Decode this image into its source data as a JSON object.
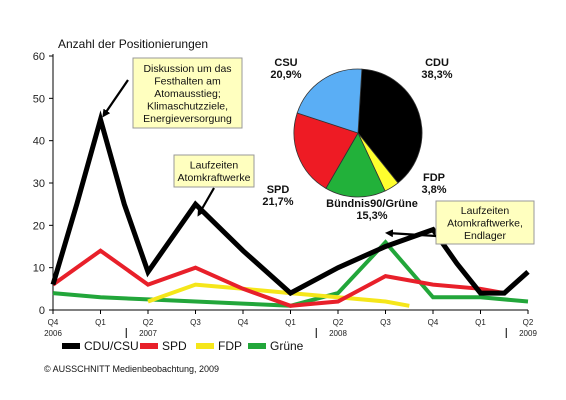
{
  "chart_data": {
    "type": "line",
    "ylabel": "Anzahl der Positionierungen",
    "ylim": [
      0,
      60
    ],
    "yticks": [
      "0",
      "10",
      "20",
      "30",
      "40",
      "50",
      "60"
    ],
    "categories": [
      {
        "q": "Q4",
        "year": "2006"
      },
      {
        "q": "Q1",
        "year": ""
      },
      {
        "q": "Q2",
        "year": "2007"
      },
      {
        "q": "Q3",
        "year": ""
      },
      {
        "q": "Q4",
        "year": ""
      },
      {
        "q": "Q1",
        "year": ""
      },
      {
        "q": "Q2",
        "year": "2008"
      },
      {
        "q": "Q3",
        "year": ""
      },
      {
        "q": "Q4",
        "year": ""
      },
      {
        "q": "Q1",
        "year": ""
      },
      {
        "q": "Q2",
        "year": "2009"
      }
    ],
    "series": [
      {
        "name": "CDU/CSU",
        "color": "#000000",
        "x": [
          0,
          0.5,
          1,
          1.5,
          2,
          2.5,
          3,
          4,
          5,
          6,
          7,
          7.5,
          8,
          8.5,
          9,
          9.5,
          10
        ],
        "values": [
          6,
          25,
          45,
          25,
          9,
          17,
          25,
          14,
          4,
          10,
          15,
          17,
          19,
          11,
          4,
          4,
          9
        ]
      },
      {
        "name": "SPD",
        "color": "#e8202a",
        "x": [
          0,
          1,
          2,
          3,
          4,
          5,
          5.5,
          6,
          7,
          8,
          9,
          9.5
        ],
        "values": [
          6,
          14,
          6,
          10,
          5,
          1,
          1.5,
          2,
          8,
          6,
          5,
          4
        ]
      },
      {
        "name": "FDP",
        "color": "#f5e61a",
        "x": [
          2,
          3,
          4,
          5,
          6,
          7,
          7.5
        ],
        "values": [
          2,
          6,
          5,
          4,
          3,
          2,
          1
        ]
      },
      {
        "name": "Grüne",
        "color": "#22a63a",
        "x": [
          0,
          1,
          2,
          3,
          4,
          5,
          6,
          7,
          8,
          9,
          10
        ],
        "values": [
          4,
          3,
          2.5,
          2,
          1.5,
          1,
          4,
          16,
          3,
          3,
          2
        ]
      }
    ],
    "annotations": [
      {
        "id": "q1-2007",
        "lines": [
          "Diskussion um das",
          "Festhalten am",
          "Atomausstieg;",
          "Klimaschutzziele,",
          "Energieversorgung"
        ]
      },
      {
        "id": "q3-2007",
        "lines": [
          "Laufzeiten",
          "Atomkraftwerke"
        ]
      },
      {
        "id": "q3-2008",
        "lines": [
          "Laufzeiten",
          "Atomkraftwerke,",
          "Endlager"
        ]
      }
    ],
    "pie": {
      "slices": [
        {
          "name": "CDU",
          "value": 38.3,
          "label": "38,3%",
          "color": "#000000"
        },
        {
          "name": "FDP",
          "value": 3.8,
          "label": "3,8%",
          "color": "#ffff2e"
        },
        {
          "name": "Bündnis90/Grüne",
          "value": 15.3,
          "label": "15,3%",
          "color": "#22b13a"
        },
        {
          "name": "SPD",
          "value": 21.7,
          "label": "21,7%",
          "color": "#ee1b24"
        },
        {
          "name": "CSU",
          "value": 20.9,
          "label": "20,9%",
          "color": "#5aaef5"
        }
      ]
    }
  },
  "copyright": "© AUSSCHNITT Medienbeobachtung, 2009"
}
